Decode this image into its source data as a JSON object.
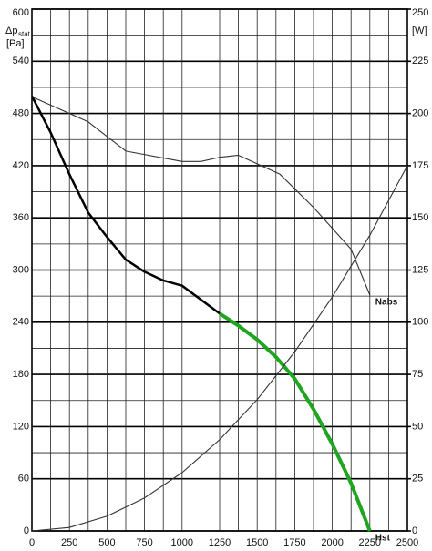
{
  "chart_data": {
    "type": "line",
    "y_label": "Δp",
    "y_label_sub": "stat",
    "y_unit": "[Pa]",
    "y2_unit": "[W]",
    "xlim": [
      0,
      2500
    ],
    "xticks": [
      0,
      250,
      500,
      750,
      1000,
      1250,
      1500,
      1750,
      2000,
      2250,
      2500
    ],
    "xminorticks": [
      125,
      375,
      625,
      875,
      1125,
      1375,
      1625,
      1875,
      2125,
      2375
    ],
    "ylim": [
      0,
      600
    ],
    "yticks": [
      0,
      60,
      120,
      180,
      240,
      300,
      360,
      420,
      480,
      540,
      600
    ],
    "yminorticks": [
      30,
      90,
      150,
      210,
      270,
      330,
      390,
      450,
      510,
      570
    ],
    "y2lim": [
      0,
      250
    ],
    "y2ticks": [
      0,
      25,
      50,
      75,
      100,
      125,
      150,
      175,
      200,
      225,
      250
    ],
    "grid": true,
    "series": [
      {
        "color": "#000000",
        "width": 2.5,
        "axis": "y",
        "x": [
          0,
          125,
          250,
          375,
          500,
          625,
          750,
          875,
          1000,
          1125,
          1250
        ],
        "values": [
          500,
          458,
          410,
          366,
          338,
          312,
          298,
          288,
          282,
          266,
          250
        ]
      },
      {
        "name": "Hst",
        "color": "#1fa51f",
        "width": 4,
        "axis": "y",
        "x": [
          1250,
          1375,
          1500,
          1625,
          1750,
          1875,
          2000,
          2125,
          2250
        ],
        "values": [
          250,
          236,
          220,
          200,
          175,
          140,
          100,
          55,
          0
        ]
      },
      {
        "name": "Nabs",
        "color": "#333333",
        "width": 1.1,
        "axis": "y2",
        "x": [
          0,
          375,
          625,
          1000,
          1125,
          1250,
          1375,
          1650,
          1875,
          2125,
          2250
        ],
        "values": [
          208,
          196,
          182,
          177,
          177,
          179,
          180,
          171,
          155,
          135,
          113
        ]
      },
      {
        "color": "#333333",
        "width": 1.1,
        "axis": "y",
        "x": [
          0,
          250,
          500,
          750,
          1000,
          1250,
          1500,
          1750,
          2000,
          2250,
          2500
        ],
        "values": [
          0,
          4,
          17,
          38,
          67,
          105,
          151,
          206,
          269,
          340,
          420
        ]
      }
    ]
  }
}
